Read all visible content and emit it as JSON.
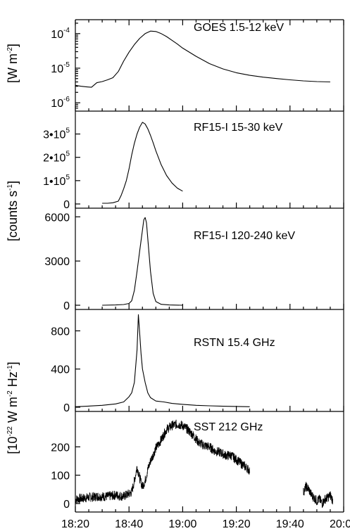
{
  "chart_data": [
    {
      "type": "line",
      "panel": "goes",
      "title": "GOES 1.5-12 keV",
      "y_scale": "log",
      "ylim": [
        1e-06,
        0.0001
      ],
      "yticks": [
        {
          "value": 0.0001,
          "base": "10",
          "exp": "-4"
        },
        {
          "value": 1e-05,
          "base": "10",
          "exp": "-5"
        },
        {
          "value": 1e-06,
          "base": "10",
          "exp": "-6"
        }
      ],
      "series": [
        {
          "x": [
            "18:20",
            "18:22",
            "18:24",
            "18:26",
            "18:28",
            "18:30",
            "18:32",
            "18:34",
            "18:36",
            "18:38",
            "18:40",
            "18:42",
            "18:44",
            "18:46",
            "18:48",
            "18:50",
            "18:52",
            "18:54",
            "18:56",
            "18:58",
            "19:00",
            "19:05",
            "19:10",
            "19:15",
            "19:20",
            "19:25",
            "19:30",
            "19:35",
            "19:40",
            "19:45",
            "19:50",
            "19:55"
          ],
          "values": [
            3.2e-06,
            3e-06,
            2.9e-06,
            2.8e-06,
            3.8e-06,
            4.1e-06,
            4.6e-06,
            5.3e-06,
            8e-06,
            1.6e-05,
            2.9e-05,
            4.8e-05,
            7.3e-05,
            0.0001,
            0.000118,
            0.000115,
            0.0001,
            8.2e-05,
            6.4e-05,
            5e-05,
            3.8e-05,
            2.2e-05,
            1.35e-05,
            9.5e-06,
            7.4e-06,
            6.2e-06,
            5.5e-06,
            5e-06,
            4.6e-06,
            4.3e-06,
            4.1e-06,
            4e-06
          ]
        }
      ]
    },
    {
      "type": "line",
      "panel": "rf15_low",
      "title": "RF15-I 15-30 keV",
      "ylim": [
        0,
        380000
      ],
      "yticks": [
        {
          "value": 300000,
          "label": "3•10",
          "exp": "5"
        },
        {
          "value": 200000,
          "label": "2•10",
          "exp": "5"
        },
        {
          "value": 100000,
          "label": "1•10",
          "exp": "5"
        },
        {
          "value": 0,
          "label": "0"
        }
      ],
      "series": [
        {
          "x": [
            "18:30",
            "18:32",
            "18:34",
            "18:36",
            "18:37",
            "18:38",
            "18:39",
            "18:40",
            "18:41",
            "18:42",
            "18:43",
            "18:44",
            "18:45",
            "18:46",
            "18:47",
            "18:48",
            "18:49",
            "18:50",
            "18:52",
            "18:54",
            "18:56",
            "18:58",
            "19:00"
          ],
          "values": [
            3000,
            3000,
            5000,
            12000,
            35000,
            65000,
            100000,
            150000,
            210000,
            260000,
            300000,
            330000,
            350000,
            343000,
            322000,
            294000,
            262000,
            228000,
            168000,
            122000,
            90000,
            68000,
            55000
          ]
        }
      ]
    },
    {
      "type": "line",
      "panel": "rf15_high",
      "title": "RF15-I 120-240 keV",
      "ylim": [
        0,
        6300
      ],
      "yticks": [
        {
          "value": 6000,
          "label": "6000"
        },
        {
          "value": 3000,
          "label": "3000"
        },
        {
          "value": 0,
          "label": "0"
        }
      ],
      "series": [
        {
          "x": [
            "18:30",
            "18:35",
            "18:38",
            "18:40",
            "18:41",
            "18:42",
            "18:43",
            "18:44",
            "18:45",
            "18:45.5",
            "18:46",
            "18:46.5",
            "18:47",
            "18:48",
            "18:49",
            "18:50",
            "18:52",
            "18:55",
            "19:00"
          ],
          "values": [
            0,
            20,
            50,
            120,
            300,
            1000,
            2300,
            3700,
            5100,
            5800,
            5950,
            5600,
            4500,
            2300,
            800,
            250,
            60,
            20,
            0
          ]
        }
      ]
    },
    {
      "type": "line",
      "panel": "rstn",
      "title": "RSTN 15.4 GHz",
      "ylim": [
        0,
        980
      ],
      "yticks": [
        {
          "value": 800,
          "label": "800"
        },
        {
          "value": 400,
          "label": "400"
        },
        {
          "value": 0,
          "label": "0"
        }
      ],
      "series": [
        {
          "x": [
            "18:20",
            "18:25",
            "18:30",
            "18:35",
            "18:38",
            "18:40",
            "18:41",
            "18:42",
            "18:43",
            "18:43.5",
            "18:44",
            "18:44.5",
            "18:45",
            "18:46",
            "18:47",
            "18:48",
            "18:50",
            "18:53",
            "18:56",
            "19:00",
            "19:05",
            "19:10",
            "19:15",
            "19:20",
            "19:25"
          ],
          "values": [
            5,
            12,
            20,
            35,
            55,
            110,
            150,
            260,
            600,
            970,
            770,
            560,
            400,
            260,
            150,
            100,
            65,
            55,
            40,
            30,
            20,
            15,
            10,
            8,
            5
          ]
        }
      ]
    },
    {
      "type": "line",
      "panel": "sst",
      "title": "SST 212 GHz",
      "ylim": [
        -15,
        310
      ],
      "yticks": [
        {
          "value": 200,
          "label": "200"
        },
        {
          "value": 100,
          "label": "100"
        },
        {
          "value": 0,
          "label": "0"
        }
      ],
      "series": [
        {
          "x": [
            "18:20",
            "18:24",
            "18:28",
            "18:32",
            "18:35",
            "18:38",
            "18:41",
            "18:42",
            "18:43",
            "18:44",
            "18:45",
            "18:46",
            "18:47",
            "18:48",
            "18:50",
            "18:52",
            "18:54",
            "18:56",
            "18:58",
            "19:00",
            "19:02",
            "19:04",
            "19:06",
            "19:08",
            "19:10",
            "19:12",
            "19:14",
            "19:16",
            "19:18",
            "19:20",
            "19:22",
            "19:24",
            "19:25"
          ],
          "values": [
            15,
            20,
            25,
            25,
            30,
            25,
            40,
            80,
            130,
            90,
            60,
            80,
            120,
            150,
            195,
            225,
            262,
            275,
            280,
            275,
            260,
            240,
            215,
            205,
            200,
            185,
            180,
            170,
            170,
            155,
            140,
            125,
            115
          ]
        },
        {
          "x": [
            "19:45",
            "19:46",
            "19:47",
            "19:48",
            "19:49",
            "19:50",
            "19:51",
            "19:52",
            "19:53",
            "19:54",
            "19:55",
            "19:56"
          ],
          "values": [
            40,
            60,
            50,
            30,
            20,
            10,
            15,
            0,
            15,
            20,
            30,
            10
          ]
        }
      ]
    }
  ],
  "shared_x": {
    "xlim": [
      "18:20",
      "20:00"
    ],
    "tick_labels": [
      "18:20",
      "18:40",
      "19:00",
      "19:20",
      "19:40",
      "20:00"
    ],
    "minor_step_minutes": 5
  },
  "ylabels": [
    {
      "text": "[W m",
      "sup": "-2",
      "tail": "]"
    },
    {
      "text": "[counts s",
      "sup": "-1",
      "tail": "]"
    },
    {
      "text": "[10",
      "sup": "-22",
      "mid": " W m",
      "sup2": "-2",
      "mid2": " Hz",
      "sup3": "-1",
      "tail": "]"
    }
  ]
}
